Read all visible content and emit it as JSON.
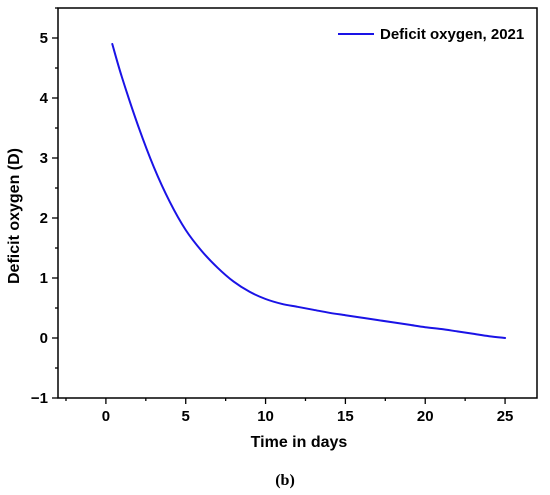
{
  "chart_data": {
    "type": "line",
    "xlabel": "Time in days",
    "ylabel": "Deficit oxygen (D)",
    "xlim": [
      -3,
      27
    ],
    "ylim": [
      -1,
      5.5
    ],
    "xticks": [
      0,
      5,
      10,
      15,
      20,
      25
    ],
    "yticks": [
      -1,
      0,
      1,
      2,
      3,
      4,
      5
    ],
    "grid": false,
    "legend_position": "top-right",
    "series": [
      {
        "name": "Deficit oxygen, 2021",
        "color": "#1a13e6",
        "x": [
          0.4,
          1,
          2,
          3,
          4,
          5,
          6,
          7,
          8,
          9,
          10,
          11,
          12,
          13,
          14,
          15,
          16,
          17,
          18,
          19,
          20,
          21,
          22,
          23,
          24,
          25
        ],
        "y": [
          4.9,
          4.35,
          3.55,
          2.85,
          2.27,
          1.8,
          1.45,
          1.17,
          0.94,
          0.77,
          0.65,
          0.57,
          0.52,
          0.47,
          0.42,
          0.38,
          0.34,
          0.3,
          0.26,
          0.22,
          0.18,
          0.15,
          0.11,
          0.07,
          0.03,
          0.0
        ]
      }
    ]
  },
  "caption": "(b)"
}
